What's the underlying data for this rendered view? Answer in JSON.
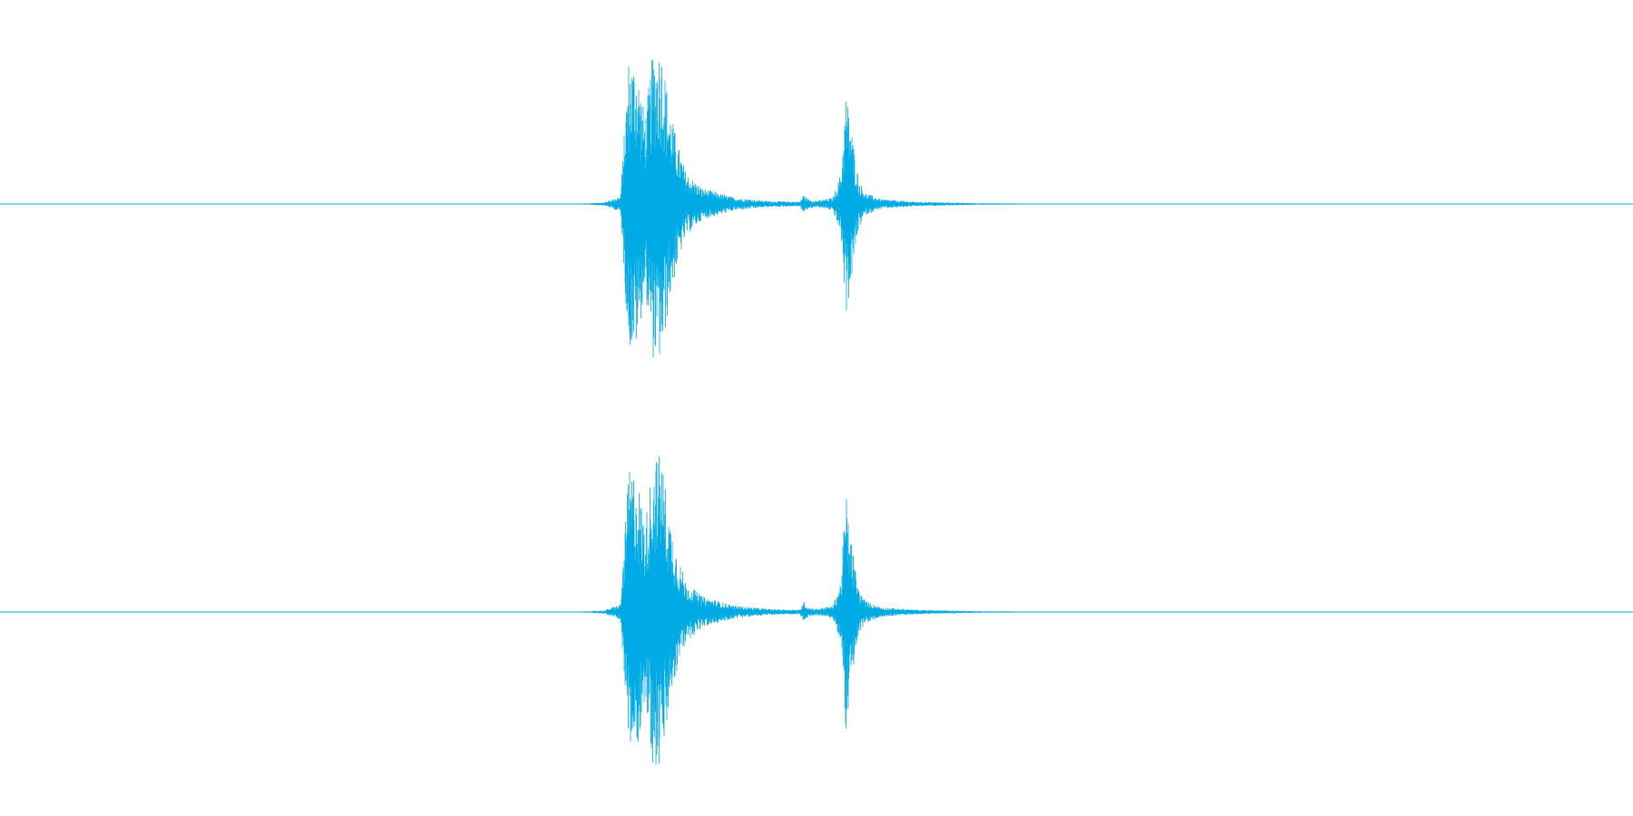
{
  "chart_data": {
    "type": "area",
    "title": "",
    "xlabel": "",
    "ylabel": "",
    "grid": false,
    "legend": "none",
    "color": "#00aae4",
    "x_range": [
      0,
      1
    ],
    "y_range": [
      -1,
      1
    ],
    "channels": [
      {
        "x": [
          0.0,
          0.35,
          0.37,
          0.38,
          0.385,
          0.39,
          0.395,
          0.4,
          0.405,
          0.41,
          0.415,
          0.42,
          0.43,
          0.45,
          0.47,
          0.49,
          0.492,
          0.495,
          0.5,
          0.51,
          0.515,
          0.518,
          0.52,
          0.523,
          0.526,
          0.53,
          0.54,
          0.56,
          0.58,
          0.6,
          0.62,
          0.64,
          1.0
        ],
        "envelope": [
          0.0,
          0.0,
          0.01,
          0.05,
          0.92,
          0.9,
          0.55,
          0.98,
          1.0,
          0.62,
          0.38,
          0.2,
          0.1,
          0.04,
          0.02,
          0.015,
          0.06,
          0.03,
          0.02,
          0.04,
          0.2,
          0.7,
          0.6,
          0.35,
          0.15,
          0.07,
          0.03,
          0.015,
          0.01,
          0.005,
          0.004,
          0.002,
          0.0
        ]
      },
      {
        "x": [
          0.0,
          0.35,
          0.37,
          0.38,
          0.385,
          0.39,
          0.395,
          0.4,
          0.405,
          0.41,
          0.415,
          0.42,
          0.43,
          0.45,
          0.47,
          0.49,
          0.492,
          0.495,
          0.5,
          0.51,
          0.515,
          0.518,
          0.52,
          0.523,
          0.526,
          0.53,
          0.54,
          0.56,
          0.58,
          0.6,
          0.62,
          0.64,
          1.0
        ],
        "envelope": [
          0.0,
          0.0,
          0.01,
          0.05,
          0.9,
          0.88,
          0.55,
          0.99,
          1.0,
          0.6,
          0.36,
          0.19,
          0.1,
          0.04,
          0.02,
          0.015,
          0.07,
          0.03,
          0.02,
          0.04,
          0.2,
          0.77,
          0.55,
          0.33,
          0.14,
          0.07,
          0.03,
          0.015,
          0.01,
          0.005,
          0.004,
          0.002,
          0.0
        ]
      }
    ]
  }
}
